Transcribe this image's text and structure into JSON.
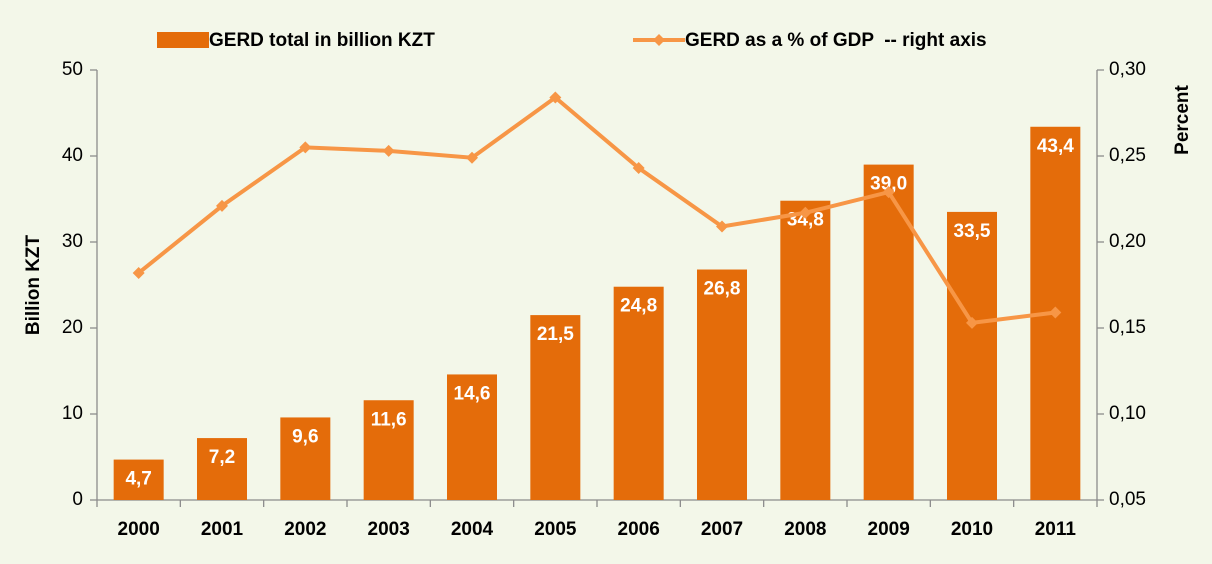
{
  "chart_data": {
    "type": "bar",
    "categories": [
      "2000",
      "2001",
      "2002",
      "2003",
      "2004",
      "2005",
      "2006",
      "2007",
      "2008",
      "2009",
      "2010",
      "2011"
    ],
    "series": [
      {
        "name": "GERD total in billion KZT",
        "color": "#e46c0a",
        "type": "bar",
        "values": [
          4.7,
          7.2,
          9.6,
          11.6,
          14.6,
          21.5,
          24.8,
          26.8,
          34.8,
          39.0,
          33.5,
          43.4
        ],
        "value_labels": [
          "4,7",
          "7,2",
          "9,6",
          "11,6",
          "14,6",
          "21,5",
          "24,8",
          "26,8",
          "34,8",
          "39,0",
          "33,5",
          "43,4"
        ]
      },
      {
        "name": "GERD as a % of GDP  -- right axis",
        "color": "#f79646",
        "type": "line",
        "axis": "y2",
        "values": [
          0.182,
          0.221,
          0.255,
          0.253,
          0.249,
          0.284,
          0.243,
          0.209,
          0.217,
          0.229,
          0.153,
          0.159
        ]
      }
    ],
    "y_label": "Billion KZT",
    "y2_label": "Percent",
    "ylim": [
      0,
      50
    ],
    "yticks": [
      0,
      10,
      20,
      30,
      40,
      50
    ],
    "y2lim": [
      0.05,
      0.3
    ],
    "y2ticks": [
      {
        "value": 0.05,
        "label": "0,05"
      },
      {
        "value": 0.1,
        "label": "0,10"
      },
      {
        "value": 0.15,
        "label": "0,15"
      },
      {
        "value": 0.2,
        "label": "0,20"
      },
      {
        "value": 0.25,
        "label": "0,25"
      },
      {
        "value": 0.3,
        "label": "0,30"
      }
    ],
    "grid": false,
    "legend": "top"
  }
}
